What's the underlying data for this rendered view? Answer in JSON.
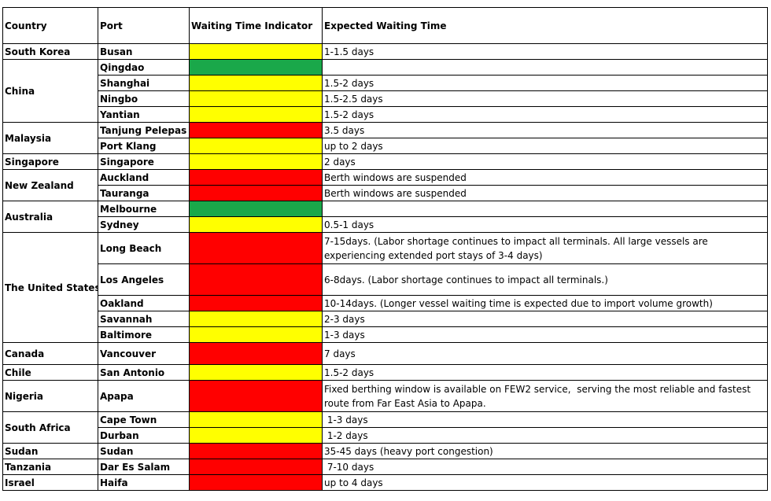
{
  "colors": {
    "green": "#1aa84a",
    "yellow": "#ffff00",
    "red": "#ff0000"
  },
  "headers": {
    "country": "Country",
    "port": "Port",
    "indicator": "Waiting Time Indicator",
    "expected": "Expected Waiting Time"
  },
  "rows": [
    {
      "country": "South Korea",
      "country_rowspan": 1,
      "port": "Busan",
      "status": "yellow",
      "time": "1-1.5 days"
    },
    {
      "country": "China",
      "country_rowspan": 4,
      "port": "Qingdao",
      "status": "green",
      "time": ""
    },
    {
      "port": "Shanghai",
      "status": "yellow",
      "time": "1.5-2 days"
    },
    {
      "port": "Ningbo",
      "status": "yellow",
      "time": "1.5-2.5 days"
    },
    {
      "port": "Yantian",
      "status": "yellow",
      "time": "1.5-2 days"
    },
    {
      "country": "Malaysia",
      "country_rowspan": 2,
      "port": "Tanjung Pelepas",
      "status": "red",
      "time": "3.5 days"
    },
    {
      "port": "Port Klang",
      "status": "yellow",
      "time": "up to 2 days"
    },
    {
      "country": "Singapore",
      "country_rowspan": 1,
      "port": "Singapore",
      "status": "yellow",
      "time": "2 days"
    },
    {
      "country": "New Zealand",
      "country_rowspan": 2,
      "port": "Auckland",
      "status": "red",
      "time": "Berth windows are suspended"
    },
    {
      "port": "Tauranga",
      "status": "red",
      "time": "Berth windows are suspended"
    },
    {
      "country": "Australia",
      "country_rowspan": 2,
      "port": "Melbourne",
      "status": "green",
      "time": ""
    },
    {
      "port": "Sydney",
      "status": "yellow",
      "time": "0.5-1 days"
    },
    {
      "country": "The United States",
      "country_rowspan": 5,
      "port": "Long Beach",
      "status": "red",
      "tall": true,
      "time": "7-15days. (Labor shortage continues to impact all terminals. All large vessels are experiencing extended port stays of 3-4 days)"
    },
    {
      "port": "Los Angeles",
      "status": "red",
      "tall": true,
      "time": "6-8days. (Labor shortage continues to impact all terminals.)"
    },
    {
      "port": "Oakland",
      "status": "red",
      "time": "10-14days. (Longer vessel waiting time is expected due to import volume growth)"
    },
    {
      "port": "Savannah",
      "status": "yellow",
      "time": "2-3 days"
    },
    {
      "port": "Baltimore",
      "status": "yellow",
      "time": "1-3 days"
    },
    {
      "country": "Canada",
      "country_rowspan": 1,
      "port": "Vancouver",
      "status": "red",
      "tall_small": true,
      "time": "7 days"
    },
    {
      "country": "Chile",
      "country_rowspan": 1,
      "port": "San Antonio",
      "status": "yellow",
      "time": "1.5-2 days"
    },
    {
      "country": "Nigeria",
      "country_rowspan": 1,
      "port": "Apapa",
      "status": "red",
      "tall": true,
      "time": "Fixed berthing window is available on FEW2 service,  serving the most reliable and fastest route from Far East Asia to Apapa."
    },
    {
      "country": "South Africa",
      "country_rowspan": 2,
      "port": "Cape Town",
      "status": "yellow",
      "time": " 1-3 days"
    },
    {
      "port": "Durban",
      "status": "yellow",
      "time": " 1-2 days"
    },
    {
      "country": "Sudan",
      "country_rowspan": 1,
      "port": "Sudan",
      "status": "red",
      "time": "35-45 days (heavy port congestion)"
    },
    {
      "country": "Tanzania",
      "country_rowspan": 1,
      "port": "Dar Es Salam",
      "status": "red",
      "time": " 7-10 days"
    },
    {
      "country": "Israel",
      "country_rowspan": 1,
      "port": "Haifa",
      "status": "red",
      "time": "up to 4 days"
    }
  ]
}
